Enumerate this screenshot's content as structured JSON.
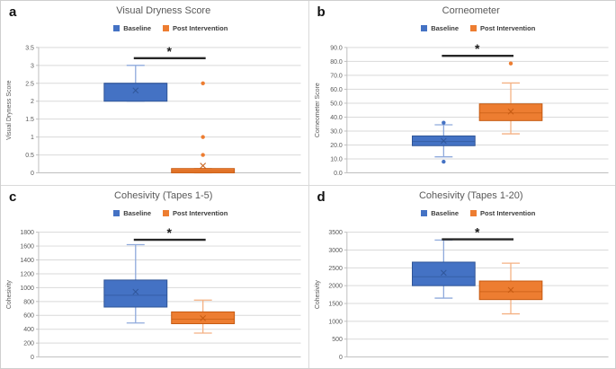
{
  "figure": {
    "background": "#ffffff",
    "border_color": "#cfcfcf",
    "divider_color": "#d9d9d9"
  },
  "legend": {
    "baseline_label": "Baseline",
    "post_label": "Post Intervention"
  },
  "styles": {
    "baseline_fill": "#4472c4",
    "baseline_stroke": "#2f5597",
    "baseline_whisker": "#8faadc",
    "post_fill": "#ed7d31",
    "post_stroke": "#c55a11",
    "post_whisker": "#f4b183",
    "title_color": "#595959",
    "tick_color": "#595959",
    "grid_color": "#d9d9d9",
    "axis_color": "#bfbfbf",
    "sig_color": "#262626"
  },
  "chart_data": [
    {
      "panel_label": "a",
      "type": "boxplot",
      "title": "Visual Dryness Score",
      "ylabel": "Visual Dryness Score",
      "ylim": [
        0,
        3.5
      ],
      "ytick_step": 0.5,
      "tick_decimals": null,
      "grid": true,
      "legend_position": "top",
      "categories": [
        "Baseline",
        "Post Intervention"
      ],
      "significance": {
        "marker": "*",
        "bar_y": 3.2
      },
      "series": [
        {
          "name": "Baseline",
          "whisker_low": 2.0,
          "q1": 2.0,
          "median": 2.5,
          "q3": 2.5,
          "whisker_high": 3.0,
          "mean": 2.3,
          "outliers": []
        },
        {
          "name": "Post Intervention",
          "whisker_low": 0,
          "q1": 0,
          "median": 0.05,
          "q3": 0.12,
          "whisker_high": 0.12,
          "mean": 0.2,
          "outliers": [
            0.5,
            1.0,
            2.5
          ]
        }
      ]
    },
    {
      "panel_label": "b",
      "type": "boxplot",
      "title": "Corneometer",
      "ylabel": "Corneometer Score",
      "ylim": [
        0,
        90
      ],
      "ytick_step": 10,
      "tick_decimals": 1,
      "grid": true,
      "legend_position": "top",
      "categories": [
        "Baseline",
        "Post Intervention"
      ],
      "significance": {
        "marker": "*",
        "bar_y": 84
      },
      "series": [
        {
          "name": "Baseline",
          "whisker_low": 11.5,
          "q1": 19.5,
          "median": 22.5,
          "q3": 26.5,
          "whisker_high": 34.5,
          "mean": 23,
          "outliers": [
            36,
            8
          ]
        },
        {
          "name": "Post Intervention",
          "whisker_low": 28,
          "q1": 37.5,
          "median": 43,
          "q3": 49.5,
          "whisker_high": 64.5,
          "mean": 44,
          "outliers": [
            78.5
          ]
        }
      ]
    },
    {
      "panel_label": "c",
      "type": "boxplot",
      "title": "Cohesivity (Tapes 1-5)",
      "ylabel": "Cohesivity",
      "ylim": [
        0,
        1800
      ],
      "ytick_step": 200,
      "tick_decimals": null,
      "grid": true,
      "legend_position": "top",
      "categories": [
        "Baseline",
        "Post Intervention"
      ],
      "significance": {
        "marker": "*",
        "bar_y": 1690
      },
      "series": [
        {
          "name": "Baseline",
          "whisker_low": 490,
          "q1": 720,
          "median": 890,
          "q3": 1110,
          "whisker_high": 1620,
          "mean": 940,
          "outliers": []
        },
        {
          "name": "Post Intervention",
          "whisker_low": 345,
          "q1": 480,
          "median": 545,
          "q3": 650,
          "whisker_high": 820,
          "mean": 560,
          "outliers": []
        }
      ]
    },
    {
      "panel_label": "d",
      "type": "boxplot",
      "title": "Cohesivity (Tapes 1-20)",
      "ylabel": "Cohesivity",
      "ylim": [
        0,
        3500
      ],
      "ytick_step": 500,
      "tick_decimals": null,
      "grid": true,
      "legend_position": "top",
      "categories": [
        "Baseline",
        "Post Intervention"
      ],
      "significance": {
        "marker": "*",
        "bar_y": 3300
      },
      "series": [
        {
          "name": "Baseline",
          "whisker_low": 1650,
          "q1": 2000,
          "median": 2250,
          "q3": 2660,
          "whisker_high": 3280,
          "mean": 2360,
          "outliers": []
        },
        {
          "name": "Post Intervention",
          "whisker_low": 1210,
          "q1": 1610,
          "median": 1830,
          "q3": 2130,
          "whisker_high": 2630,
          "mean": 1880,
          "outliers": []
        }
      ]
    }
  ]
}
